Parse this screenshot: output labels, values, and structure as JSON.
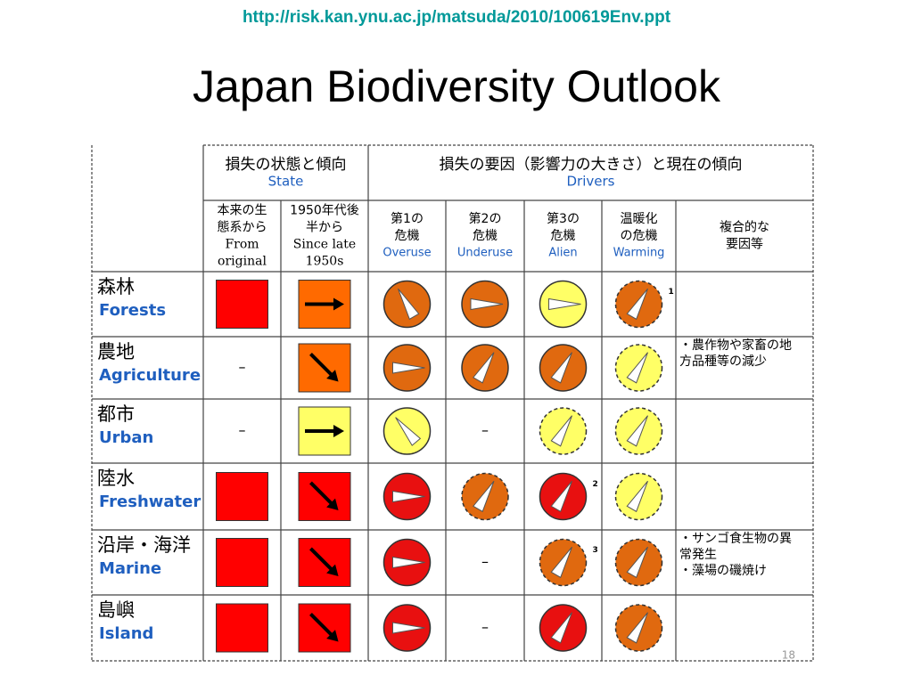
{
  "url": "http://risk.kan.ynu.ac.jp/matsuda/2010/100619Env.ppt",
  "title": "Japan Biodiversity Outlook",
  "table": {
    "header": {
      "state": {
        "ja": "損失の状態と傾向",
        "en": "State"
      },
      "drivers": {
        "ja": "損失の要因（影響力の大きさ）と現在の傾向",
        "en": "Drivers"
      }
    },
    "columns": [
      {
        "lines": [
          "本来の生",
          "態系から",
          "From",
          "original"
        ]
      },
      {
        "lines": [
          "1950年代後",
          "半から",
          "Since late",
          "1950s"
        ]
      },
      {
        "lines": [
          "第1の",
          "危機"
        ],
        "en": "Overuse"
      },
      {
        "lines": [
          "第2の",
          "危機"
        ],
        "en": "Underuse"
      },
      {
        "lines": [
          "第3の",
          "危機"
        ],
        "en": "Alien"
      },
      {
        "lines": [
          "温暖化",
          "の危機"
        ],
        "en": "Warming"
      },
      {
        "lines": [
          "複合的な",
          "要因等"
        ]
      }
    ],
    "rows": [
      {
        "ja": "森林",
        "en": "Forests",
        "original": {
          "fill": "#ff0000"
        },
        "trend": {
          "fill": "#ff6a00",
          "arrow": 0
        },
        "drivers": [
          {
            "fill": "#e0690f",
            "angle": -120
          },
          {
            "fill": "#e0690f",
            "angle": 0
          },
          {
            "fill": "#ffff66",
            "angle": 0
          },
          {
            "fill": "#e0690f",
            "angle": -60,
            "dashed": true,
            "note": "1"
          }
        ],
        "other": []
      },
      {
        "ja": "農地",
        "en": "Agriculture",
        "original": "–",
        "trend": {
          "fill": "#ff6a00",
          "arrow": 45
        },
        "drivers": [
          {
            "fill": "#e0690f",
            "angle": 0
          },
          {
            "fill": "#e0690f",
            "angle": -60
          },
          {
            "fill": "#e0690f",
            "angle": -60
          },
          {
            "fill": "#ffff66",
            "angle": -60,
            "dashed": true
          }
        ],
        "other": [
          "・農作物や家畜の地",
          "方品種等の減少"
        ]
      },
      {
        "ja": "都市",
        "en": "Urban",
        "original": "–",
        "trend": {
          "fill": "#ffff66",
          "arrow": 0
        },
        "drivers": [
          {
            "fill": "#ffff66",
            "angle": -130
          },
          "–",
          {
            "fill": "#ffff66",
            "angle": -60,
            "dashed": true
          },
          {
            "fill": "#ffff66",
            "angle": -60,
            "dashed": true
          }
        ],
        "other": []
      },
      {
        "ja": "陸水",
        "en": "Freshwater",
        "original": {
          "fill": "#ff0000"
        },
        "trend": {
          "fill": "#ff0000",
          "arrow": 45
        },
        "drivers": [
          {
            "fill": "#e81010",
            "angle": 0
          },
          {
            "fill": "#e0690f",
            "angle": -60,
            "dashed": true
          },
          {
            "fill": "#e81010",
            "angle": -60,
            "note": "2"
          },
          {
            "fill": "#ffff66",
            "angle": -60,
            "dashed": true
          }
        ],
        "other": []
      },
      {
        "ja": "沿岸・海洋",
        "en": "Marine",
        "original": {
          "fill": "#ff0000"
        },
        "trend": {
          "fill": "#ff0000",
          "arrow": 45
        },
        "drivers": [
          {
            "fill": "#e81010",
            "angle": 0
          },
          "–",
          {
            "fill": "#e0690f",
            "angle": -60,
            "dashed": true,
            "note": "3"
          },
          {
            "fill": "#e0690f",
            "angle": -60,
            "dashed": true
          }
        ],
        "other": [
          "・サンゴ食生物の異",
          "常発生",
          "・藻場の磯焼け"
        ]
      },
      {
        "ja": "島嶼",
        "en": "Island",
        "original": {
          "fill": "#ff0000"
        },
        "trend": {
          "fill": "#ff0000",
          "arrow": 45
        },
        "drivers": [
          {
            "fill": "#e81010",
            "angle": 0
          },
          "–",
          {
            "fill": "#e81010",
            "angle": -60
          },
          {
            "fill": "#e0690f",
            "angle": -60,
            "dashed": true
          }
        ],
        "other": []
      }
    ]
  },
  "page_number": "18"
}
